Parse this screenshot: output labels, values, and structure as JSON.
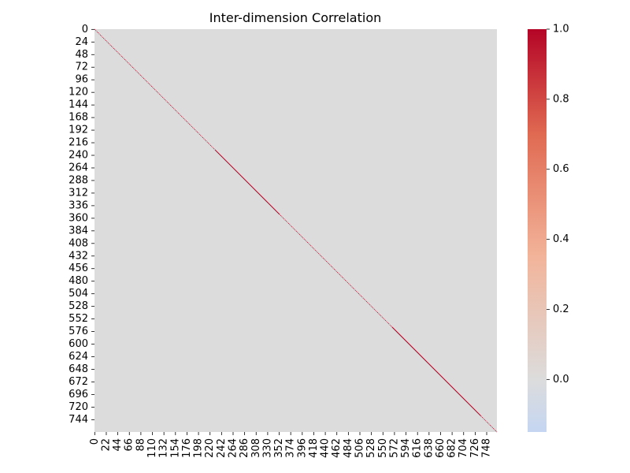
{
  "chart_data": {
    "type": "heatmap",
    "title": "Inter-dimension Correlation",
    "xlabel": "",
    "ylabel": "",
    "n": 768,
    "y_ticks": [
      0,
      24,
      48,
      72,
      96,
      120,
      144,
      168,
      192,
      216,
      240,
      264,
      288,
      312,
      336,
      360,
      384,
      408,
      432,
      456,
      480,
      504,
      528,
      552,
      576,
      600,
      624,
      648,
      672,
      696,
      720,
      744
    ],
    "x_ticks": [
      0,
      22,
      44,
      66,
      88,
      110,
      132,
      154,
      176,
      198,
      220,
      242,
      264,
      286,
      308,
      330,
      352,
      374,
      396,
      418,
      440,
      462,
      484,
      506,
      528,
      550,
      572,
      594,
      616,
      638,
      660,
      682,
      704,
      726,
      748
    ],
    "diagonal_value": 1.0,
    "off_diagonal_value": 0.0,
    "colorbar": {
      "vmin": -0.15,
      "vmax": 1.0,
      "ticks": [
        "1.0",
        "0.8",
        "0.6",
        "0.4",
        "0.2",
        "0.0"
      ],
      "colormap": "coolwarm",
      "colors": {
        "low": "#c5d6f2",
        "mid": "#dcdcdc",
        "high": "#b40426"
      }
    }
  }
}
